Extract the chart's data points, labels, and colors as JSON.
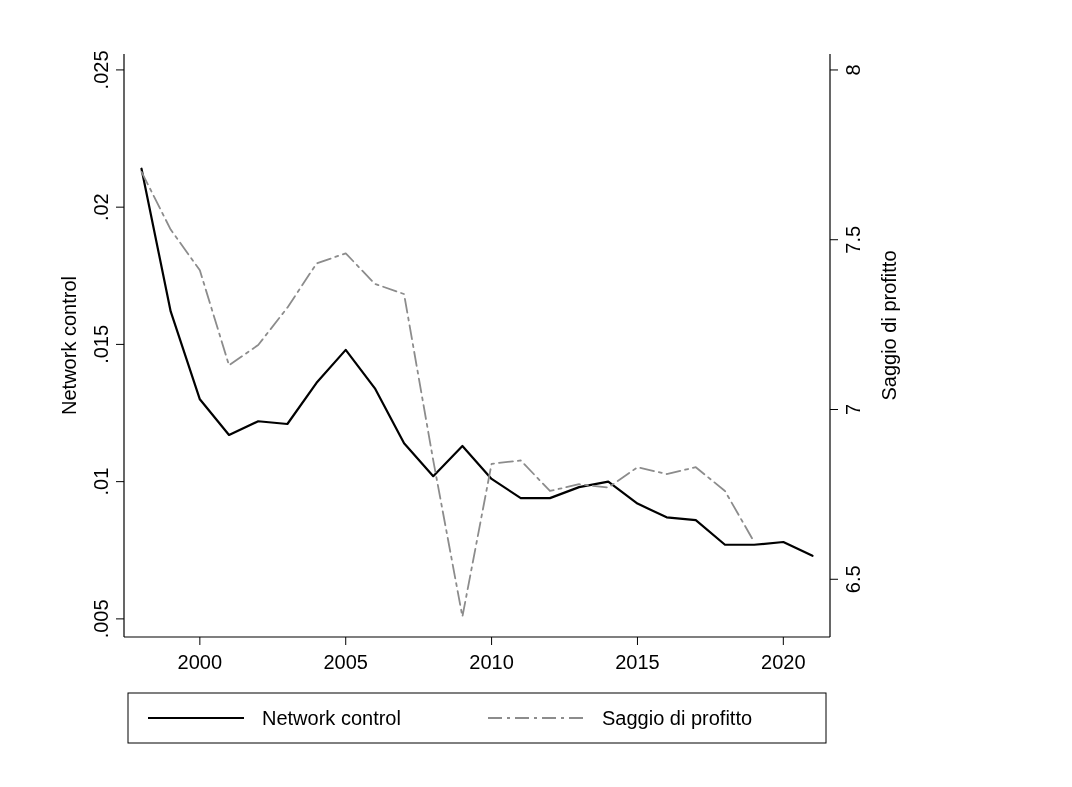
{
  "chart_data": {
    "type": "line",
    "xlabel": null,
    "ylabel": "Network control",
    "y2label": "Saggio di profitto",
    "x": [
      1998,
      1999,
      2000,
      2001,
      2002,
      2003,
      2004,
      2005,
      2006,
      2007,
      2008,
      2009,
      2010,
      2011,
      2012,
      2013,
      2014,
      2015,
      2016,
      2017,
      2018,
      2019,
      2020,
      2021
    ],
    "xlim": [
      1997.4,
      2021.6
    ],
    "xticks": [
      2000,
      2005,
      2010,
      2015,
      2020
    ],
    "ylim": [
      0.00434,
      0.02558
    ],
    "yticks": [
      {
        "value": 0.005,
        "label": ".005"
      },
      {
        "value": 0.01,
        "label": ".01"
      },
      {
        "value": 0.015,
        "label": ".015"
      },
      {
        "value": 0.02,
        "label": ".02"
      },
      {
        "value": 0.025,
        "label": ".025"
      }
    ],
    "y2lim": [
      6.33,
      8.047
    ],
    "y2ticks": [
      6.5,
      7,
      7.5,
      8
    ],
    "legend": "bottom",
    "grid": false,
    "series": [
      {
        "name": "Network control",
        "color": "#000000",
        "line_style": "solid",
        "values": [
          0.0214,
          0.0162,
          0.013,
          0.0117,
          0.0122,
          0.0121,
          0.0136,
          0.0148,
          0.0134,
          0.0114,
          0.0102,
          0.0113,
          0.0101,
          0.0094,
          0.0094,
          0.0098,
          0.01,
          0.0092,
          0.0087,
          0.0086,
          0.0077,
          0.0077,
          0.0078,
          0.0073
        ]
      },
      {
        "name": "Saggio di profitto",
        "color": "#8c8c8c",
        "line_style": "dashed",
        "axis": "y2",
        "values": [
          7.7,
          7.53,
          7.41,
          7.13,
          7.19,
          7.3,
          7.43,
          7.46,
          7.37,
          7.34,
          6.85,
          6.39,
          6.84,
          6.85,
          6.76,
          6.78,
          6.77,
          6.83,
          6.81,
          6.83,
          6.76,
          6.61,
          null,
          null
        ]
      }
    ]
  }
}
